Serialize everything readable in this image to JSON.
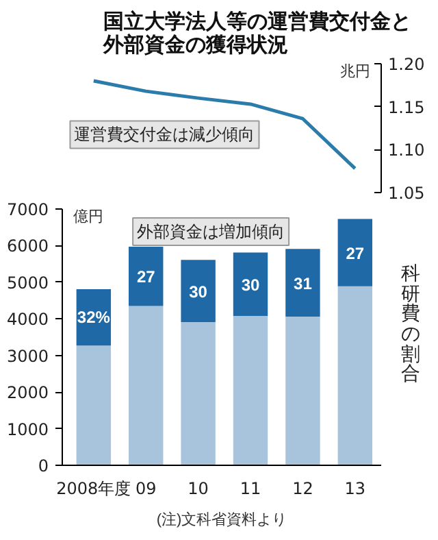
{
  "chart_data": [
    {
      "type": "line",
      "title": "国立大学法人等の運営費交付金と外部資金の獲得状況",
      "ylabel": "兆円",
      "tick_labels": "y",
      "categories": [
        null,
        null,
        null,
        null,
        null,
        null
      ],
      "series": [
        {
          "color": "#2b7bab",
          "values": [
            1.18,
            1.168,
            1.16,
            1.153,
            1.136,
            1.078
          ]
        }
      ],
      "ylim": [
        1.05,
        1.2
      ],
      "yticks": [
        {
          "value": 1.05,
          "label": "1.05"
        },
        {
          "value": 1.1,
          "label": "1.10"
        },
        {
          "value": 1.15,
          "label": "1.15"
        },
        {
          "value": 1.2,
          "label": "1.20"
        }
      ],
      "grid": false,
      "annotations": [
        "運営費交付金は減少傾向"
      ]
    },
    {
      "type": "bar",
      "ylabel": "億円",
      "stacked": true,
      "categories": [
        "2008年度",
        "09",
        "10",
        "11",
        "12",
        "13"
      ],
      "series": [
        {
          "color": "#a8c3dc",
          "values": [
            3270,
            4350,
            3910,
            4080,
            4060,
            4890
          ]
        },
        {
          "name": "科研費の割合",
          "color": "#1f69a6",
          "values": [
            1540,
            1620,
            1700,
            1730,
            1850,
            1840
          ]
        }
      ],
      "ylim": [
        0,
        7000
      ],
      "yticks": [
        0,
        1000,
        2000,
        3000,
        4000,
        5000,
        6000,
        7000
      ],
      "grid": false,
      "annotations": [
        "外部資金は増加傾向",
        "32%",
        "27",
        "30",
        "30",
        "31",
        "27",
        "(注)文科省資料より"
      ]
    }
  ]
}
